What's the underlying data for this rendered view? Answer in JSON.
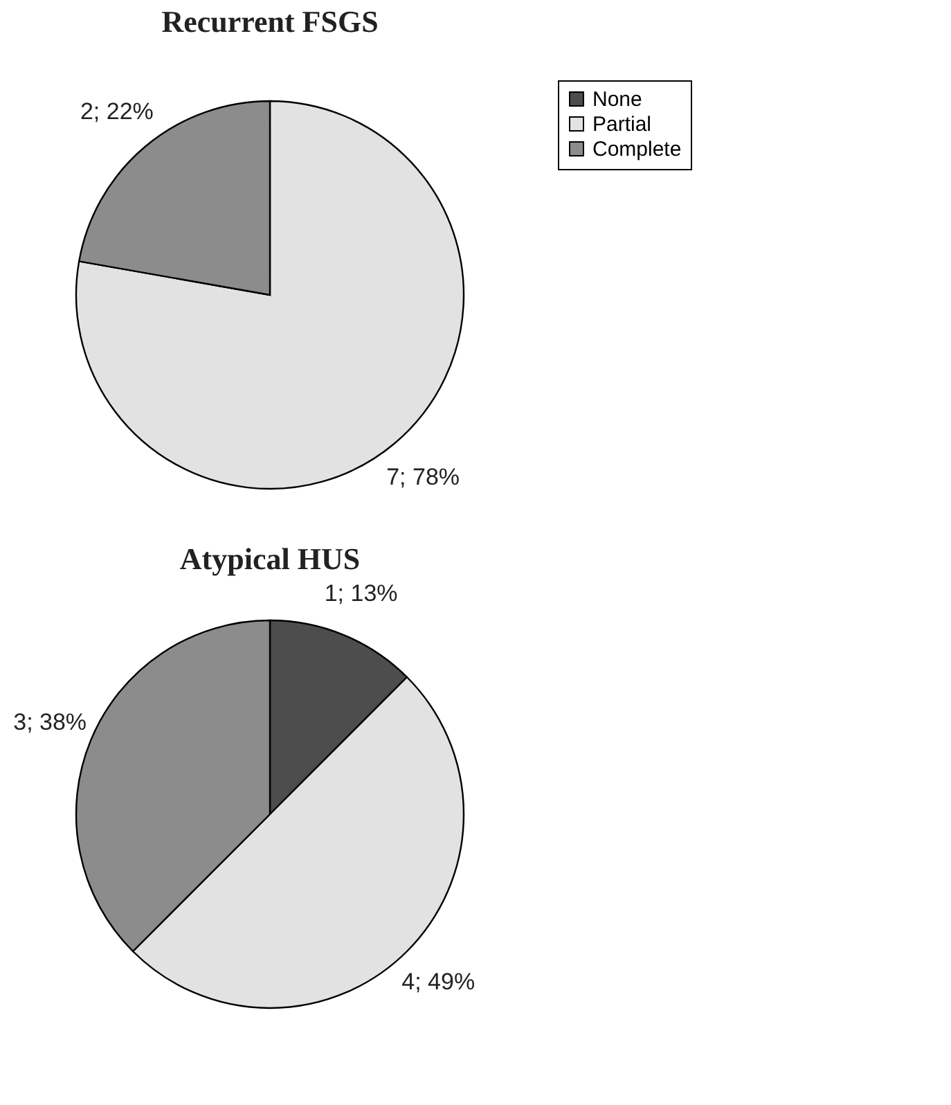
{
  "chart_data": [
    {
      "type": "pie",
      "title": "Recurrent FSGS",
      "categories": [
        "None",
        "Partial",
        "Complete"
      ],
      "values": [
        0,
        7,
        2
      ],
      "colors": [
        "#4d4d4d",
        "#e2e2e2",
        "#8c8c8c"
      ],
      "value_labels": [
        null,
        "7; 78%",
        "2; 22%"
      ],
      "legend": "top right"
    },
    {
      "type": "pie",
      "title": "Atypical HUS",
      "categories": [
        null,
        null,
        null
      ],
      "values": [
        1,
        4,
        3
      ],
      "colors": [
        "#4d4d4d",
        "#e2e2e2",
        "#8c8c8c"
      ],
      "value_labels": [
        "1; 13%",
        "4; 49%",
        "3; 38%"
      ]
    }
  ]
}
